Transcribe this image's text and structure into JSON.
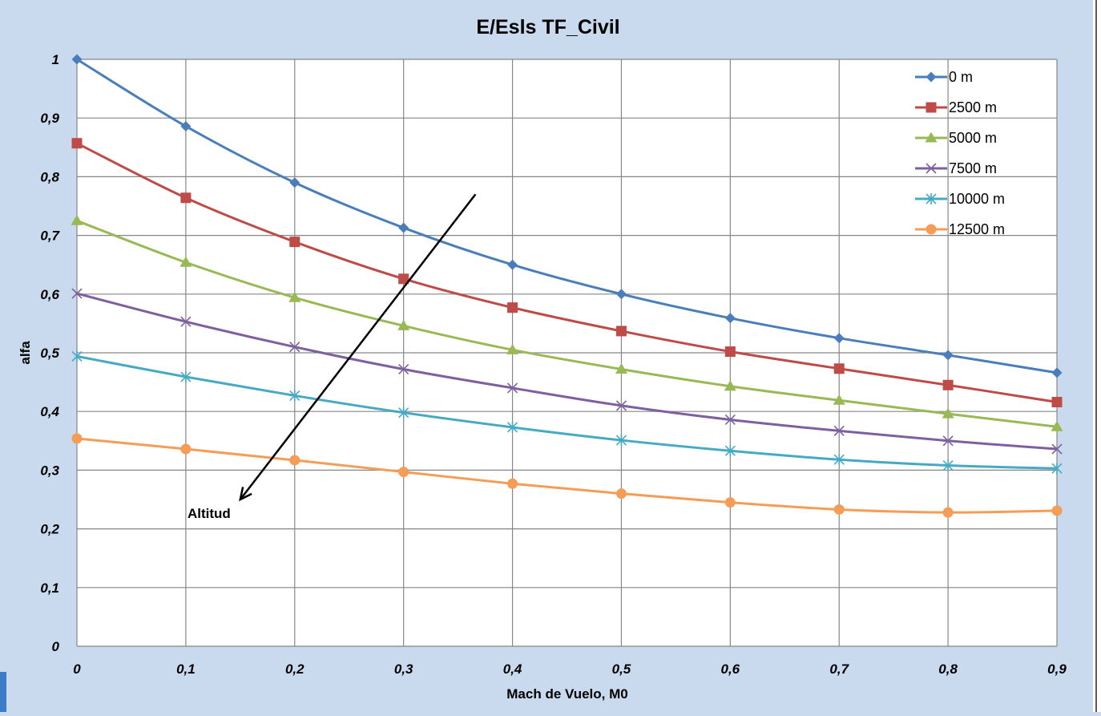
{
  "chart_data": {
    "type": "line",
    "title": "E/Esls TF_Civil",
    "xlabel": "Mach de Vuelo, M0",
    "ylabel": "alfa",
    "xlim": [
      0,
      0.9
    ],
    "ylim": [
      0,
      1
    ],
    "x": [
      0,
      0.1,
      0.2,
      0.3,
      0.4,
      0.5,
      0.6,
      0.7,
      0.8,
      0.9
    ],
    "x_tick_labels": [
      "0",
      "0,1",
      "0,2",
      "0,3",
      "0,4",
      "0,5",
      "0,6",
      "0,7",
      "0,8",
      "0,9"
    ],
    "y_ticks": [
      0,
      0.1,
      0.2,
      0.3,
      0.4,
      0.5,
      0.6,
      0.7,
      0.8,
      0.9,
      1
    ],
    "y_tick_labels": [
      "0",
      "0,1",
      "0,2",
      "0,3",
      "0,4",
      "0,5",
      "0,6",
      "0,7",
      "0,8",
      "0,9",
      "1"
    ],
    "grid": true,
    "legend_position": "top-right",
    "series": [
      {
        "name": "0 m",
        "color": "#4a7ebb",
        "marker": "diamond",
        "values": [
          1.0,
          0.886,
          0.79,
          0.713,
          0.65,
          0.6,
          0.559,
          0.525,
          0.496,
          0.466
        ]
      },
      {
        "name": "2500 m",
        "color": "#be4b48",
        "marker": "square",
        "values": [
          0.857,
          0.764,
          0.689,
          0.626,
          0.577,
          0.537,
          0.502,
          0.473,
          0.445,
          0.416
        ]
      },
      {
        "name": "5000 m",
        "color": "#98b954",
        "marker": "triangle",
        "values": [
          0.725,
          0.654,
          0.594,
          0.546,
          0.505,
          0.472,
          0.443,
          0.419,
          0.396,
          0.374
        ]
      },
      {
        "name": "7500 m",
        "color": "#7d60a0",
        "marker": "x",
        "values": [
          0.601,
          0.553,
          0.51,
          0.472,
          0.44,
          0.41,
          0.386,
          0.367,
          0.35,
          0.336
        ]
      },
      {
        "name": "10000 m",
        "color": "#46aac5",
        "marker": "star",
        "values": [
          0.494,
          0.459,
          0.427,
          0.398,
          0.373,
          0.351,
          0.333,
          0.318,
          0.308,
          0.303
        ]
      },
      {
        "name": "12500 m",
        "color": "#f59d56",
        "marker": "circle",
        "values": [
          0.354,
          0.336,
          0.317,
          0.297,
          0.277,
          0.26,
          0.245,
          0.233,
          0.228,
          0.231
        ]
      }
    ],
    "annotations": [
      {
        "text": "Altitud",
        "arrow_from": [
          0.366,
          0.77
        ],
        "arrow_to": [
          0.15,
          0.25
        ]
      }
    ]
  }
}
